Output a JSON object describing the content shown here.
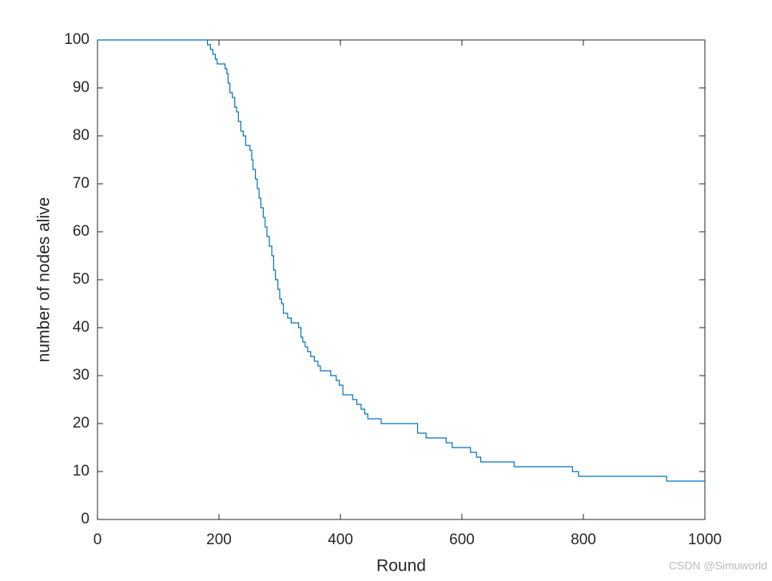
{
  "chart_data": {
    "type": "stairs",
    "xlabel": "Round",
    "ylabel": "number of nodes alive",
    "watermark": "CSDN @Simuworld",
    "x": [
      0,
      181,
      186,
      190,
      194,
      197,
      210,
      213,
      215,
      218,
      222,
      226,
      229,
      232,
      236,
      240,
      244,
      251,
      254,
      256,
      260,
      263,
      266,
      269,
      273,
      276,
      279,
      283,
      287,
      290,
      293,
      297,
      300,
      303,
      306,
      313,
      319,
      331,
      335,
      338,
      342,
      346,
      351,
      357,
      363,
      367,
      384,
      393,
      398,
      404,
      420,
      427,
      434,
      440,
      445,
      467,
      527,
      541,
      574,
      584,
      614,
      624,
      631,
      686,
      782,
      792,
      937,
      1000
    ],
    "values": [
      100,
      99,
      98,
      97,
      96,
      95,
      94,
      93,
      91,
      89,
      88,
      86,
      85,
      83,
      81,
      80,
      78,
      77,
      75,
      73,
      71,
      69,
      67,
      65,
      63,
      61,
      59,
      57,
      55,
      52,
      50,
      48,
      46,
      45,
      43,
      42,
      41,
      40,
      38,
      37,
      36,
      35,
      34,
      33,
      32,
      31,
      30,
      29,
      28,
      26,
      25,
      24,
      23,
      22,
      21,
      20,
      18,
      17,
      16,
      15,
      14,
      13,
      12,
      11,
      10,
      9,
      8,
      8
    ],
    "color": "#0072bd",
    "xlim": [
      0,
      1000
    ],
    "xticks": [
      0,
      200,
      400,
      600,
      800,
      1000
    ],
    "ylim": [
      0,
      100
    ],
    "yticks": [
      0,
      10,
      20,
      30,
      40,
      50,
      60,
      70,
      80,
      90,
      100
    ],
    "grid": false
  }
}
